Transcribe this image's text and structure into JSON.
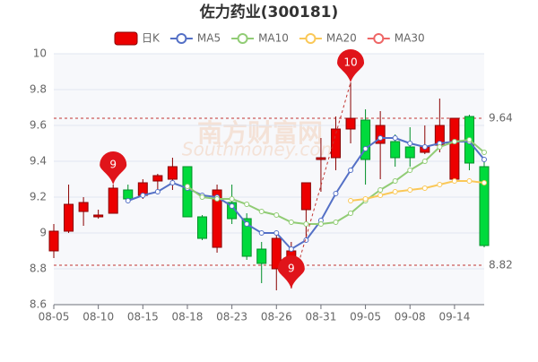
{
  "chart_data": {
    "type": "candlestick",
    "title": "佐力药业(300181)",
    "watermark": "南方财富网",
    "watermark_sub": "Southmoney.com",
    "categories": [
      "08-05",
      null,
      null,
      "08-10",
      null,
      null,
      "08-15",
      null,
      null,
      "08-18",
      null,
      null,
      "08-23",
      null,
      null,
      "08-26",
      null,
      null,
      "08-31",
      null,
      null,
      "09-05",
      null,
      null,
      "09-08",
      null,
      null,
      "09-14",
      null,
      null
    ],
    "ylim": [
      8.6,
      10
    ],
    "yticks": [
      10,
      9.8,
      9.6,
      9.4,
      9.2,
      9,
      8.8,
      8.6
    ],
    "grid": true,
    "up_color": "#ec0000",
    "down_color": "#00da3c",
    "series": [
      {
        "name": "日K",
        "color": "#ec0000",
        "open": [
          8.9,
          9.01,
          9.12,
          9.09,
          9.11,
          9.24,
          9.21,
          9.29,
          9.3,
          9.37,
          9.09,
          8.92,
          9.17,
          9.08,
          8.91,
          8.8,
          8.85,
          9.13,
          9.41,
          9.42,
          9.58,
          9.63,
          9.5,
          9.51,
          9.48,
          9.45,
          9.49,
          9.3,
          9.65,
          9.37
        ],
        "close": [
          9.01,
          9.16,
          9.17,
          9.1,
          9.25,
          9.19,
          9.28,
          9.32,
          9.37,
          9.09,
          8.97,
          9.24,
          9.08,
          8.87,
          8.83,
          8.97,
          8.9,
          9.28,
          9.42,
          9.58,
          9.64,
          9.41,
          9.6,
          9.42,
          9.42,
          9.48,
          9.6,
          9.64,
          9.39,
          8.93
        ],
        "high": [
          9.05,
          9.27,
          9.2,
          9.13,
          9.27,
          9.27,
          9.3,
          9.33,
          9.42,
          9.37,
          9.1,
          9.27,
          9.27,
          9.11,
          8.95,
          9.0,
          8.95,
          9.28,
          9.53,
          9.65,
          9.84,
          9.69,
          9.68,
          9.55,
          9.59,
          9.6,
          9.75,
          9.64,
          9.66,
          9.4
        ],
        "low": [
          8.86,
          9.0,
          9.04,
          9.08,
          9.11,
          9.17,
          9.19,
          9.22,
          9.24,
          9.09,
          8.96,
          8.89,
          9.05,
          8.85,
          8.72,
          8.68,
          8.69,
          8.96,
          9.23,
          9.35,
          9.5,
          9.27,
          9.3,
          9.37,
          9.37,
          9.44,
          9.45,
          9.3,
          9.35,
          8.92
        ]
      },
      {
        "name": "MA5",
        "color": "#5470c6",
        "values": [
          null,
          null,
          null,
          null,
          null,
          9.18,
          9.21,
          9.23,
          9.28,
          9.25,
          9.21,
          9.2,
          9.15,
          9.05,
          9.0,
          9.0,
          8.91,
          8.96,
          9.07,
          9.22,
          9.35,
          9.47,
          9.53,
          9.53,
          9.5,
          9.48,
          9.5,
          9.51,
          9.51,
          9.41
        ]
      },
      {
        "name": "MA10",
        "color": "#91cc75",
        "values": [
          null,
          null,
          null,
          null,
          null,
          null,
          null,
          null,
          null,
          9.26,
          9.2,
          9.19,
          9.19,
          9.16,
          9.12,
          9.1,
          9.06,
          9.05,
          9.05,
          9.06,
          9.11,
          9.18,
          9.24,
          9.29,
          9.35,
          9.4,
          9.48,
          9.51,
          9.52,
          9.45
        ]
      },
      {
        "name": "MA20",
        "color": "#fac858",
        "values": [
          null,
          null,
          null,
          null,
          null,
          null,
          null,
          null,
          null,
          null,
          null,
          null,
          null,
          null,
          null,
          null,
          null,
          null,
          null,
          null,
          9.18,
          9.19,
          9.21,
          9.23,
          9.24,
          9.25,
          9.27,
          9.29,
          9.29,
          9.28
        ]
      },
      {
        "name": "MA30",
        "color": "#ee6666",
        "values": [
          null,
          null,
          null,
          null,
          null,
          null,
          null,
          null,
          null,
          null,
          null,
          null,
          null,
          null,
          null,
          null,
          null,
          null,
          null,
          null,
          null,
          null,
          null,
          null,
          null,
          null,
          null,
          null,
          null,
          null
        ]
      }
    ],
    "mark_points": [
      {
        "label": "9",
        "index": 4,
        "value": 9.27
      },
      {
        "label": "9",
        "index": 16,
        "value": 8.69
      },
      {
        "label": "10",
        "index": 20,
        "value": 9.84
      }
    ],
    "mark_lines": [
      9.64,
      8.82
    ]
  }
}
